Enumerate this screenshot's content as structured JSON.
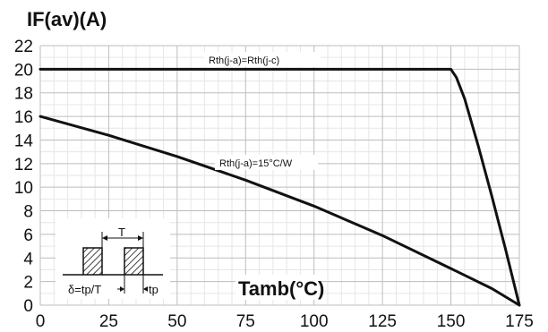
{
  "chart_data": {
    "type": "line",
    "ylabel": "IF(av)(A)",
    "xlabel": "Tamb(°C)",
    "xlim": [
      0,
      175
    ],
    "ylim": [
      0,
      22
    ],
    "xticks": [
      0,
      25,
      50,
      75,
      100,
      125,
      150,
      175
    ],
    "yticks": [
      0,
      2,
      4,
      6,
      8,
      10,
      12,
      14,
      16,
      18,
      20,
      22
    ],
    "grid": true,
    "series": [
      {
        "name": "Rth(j-a)=Rth(j-c)",
        "color": "#111111",
        "x": [
          0,
          150,
          152,
          155,
          160,
          165,
          170,
          175
        ],
        "y": [
          20,
          20,
          19.3,
          17.5,
          13.5,
          9.2,
          4.7,
          0
        ]
      },
      {
        "name": "Rth(j-a)=15°C/W",
        "color": "#111111",
        "x": [
          0,
          25,
          50,
          75,
          100,
          125,
          150,
          165,
          175
        ],
        "y": [
          16,
          14.4,
          12.6,
          10.6,
          8.4,
          5.9,
          3.1,
          1.4,
          0
        ]
      }
    ],
    "annotations": [
      {
        "text": "Rth(j-a)=Rth(j-c)",
        "series": 0
      },
      {
        "text": "Rth(j-a)=15°C/W",
        "series": 1
      }
    ],
    "inset": {
      "period_label": "T",
      "pulse_label": "tp",
      "duty_label": "δ=tp/T"
    }
  }
}
